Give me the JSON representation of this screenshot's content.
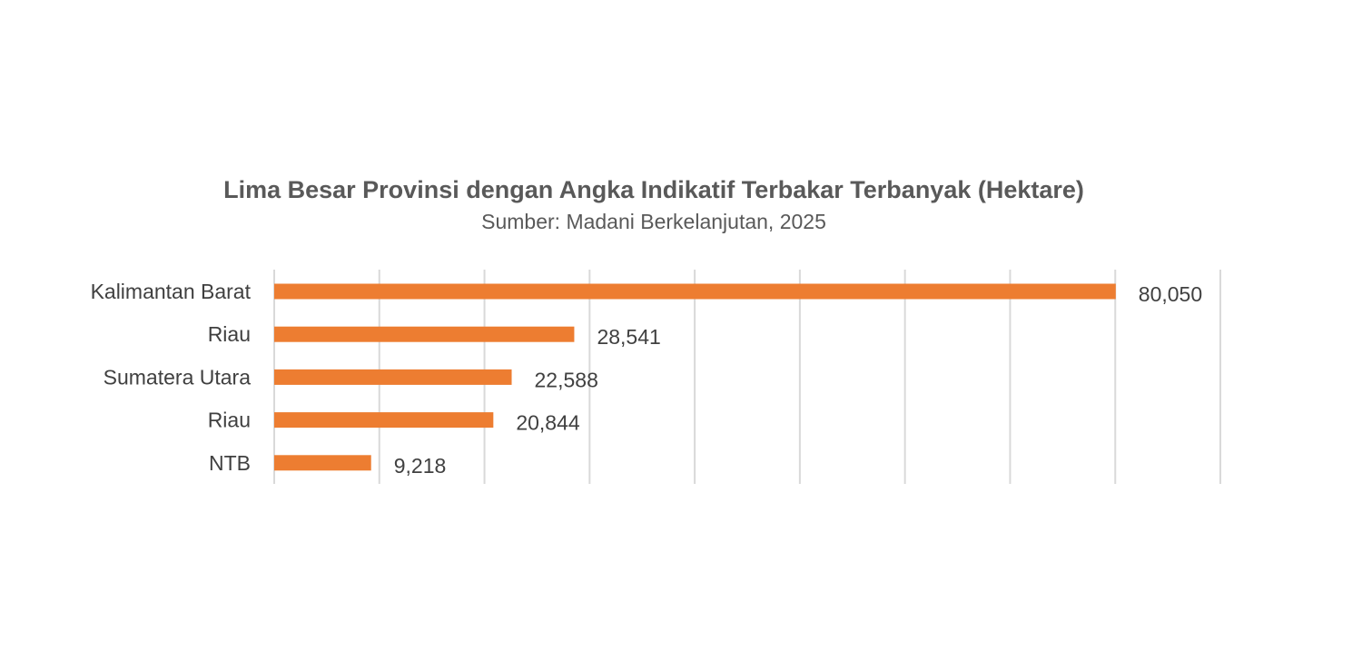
{
  "chart_data": {
    "type": "bar",
    "orientation": "horizontal",
    "title": "Lima Besar Provinsi dengan Angka Indikatif Terbakar Terbanyak (Hektare)",
    "subtitle": "Sumber: Madani Berkelanjutan, 2025",
    "categories": [
      "Kalimantan Barat",
      "Riau",
      "Sumatera Utara",
      "Riau",
      "NTB"
    ],
    "values": [
      80050,
      28541,
      22588,
      20844,
      9218
    ],
    "value_labels": [
      "80,050",
      "28,541",
      "22,588",
      "20,844",
      "9,218"
    ],
    "xlim": [
      0,
      90000
    ],
    "grid_step": 10000,
    "grid": true,
    "bar_color": "#ED7D31",
    "grid_color": "#D9D9D9"
  }
}
